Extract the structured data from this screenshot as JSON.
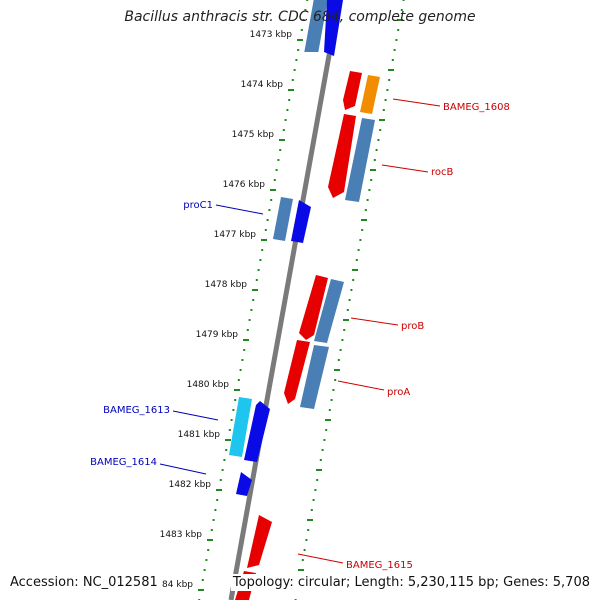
{
  "title": "Bacillus anthracis str. CDC 684, complete genome",
  "footer": {
    "accession": "Accession: NC_012581",
    "summary": "Topology: circular; Length: 5,230,115 bp; Genes: 5,708"
  },
  "colors": {
    "backbone": "#7a7a7a",
    "tick": "#1f8a1f",
    "label_forward": "#cc0000",
    "label_reverse": "#0000bb"
  },
  "ruler": {
    "ticks": [
      "1473 kbp",
      "1474 kbp",
      "1475 kbp",
      "1476 kbp",
      "1477 kbp",
      "1478 kbp",
      "1479 kbp",
      "1480 kbp",
      "1481 kbp",
      "1482 kbp",
      "1483 kbp",
      "84 kbp"
    ]
  },
  "genes": [
    {
      "label": "BAMEG_1608",
      "strand": "forward"
    },
    {
      "label": "rocB",
      "strand": "forward"
    },
    {
      "label": "proB",
      "strand": "forward"
    },
    {
      "label": "proA",
      "strand": "forward"
    },
    {
      "label": "BAMEG_1615",
      "strand": "forward"
    },
    {
      "label": "proC1",
      "strand": "reverse"
    },
    {
      "label": "BAMEG_1613",
      "strand": "reverse"
    },
    {
      "label": "BAMEG_1614",
      "strand": "reverse"
    }
  ]
}
